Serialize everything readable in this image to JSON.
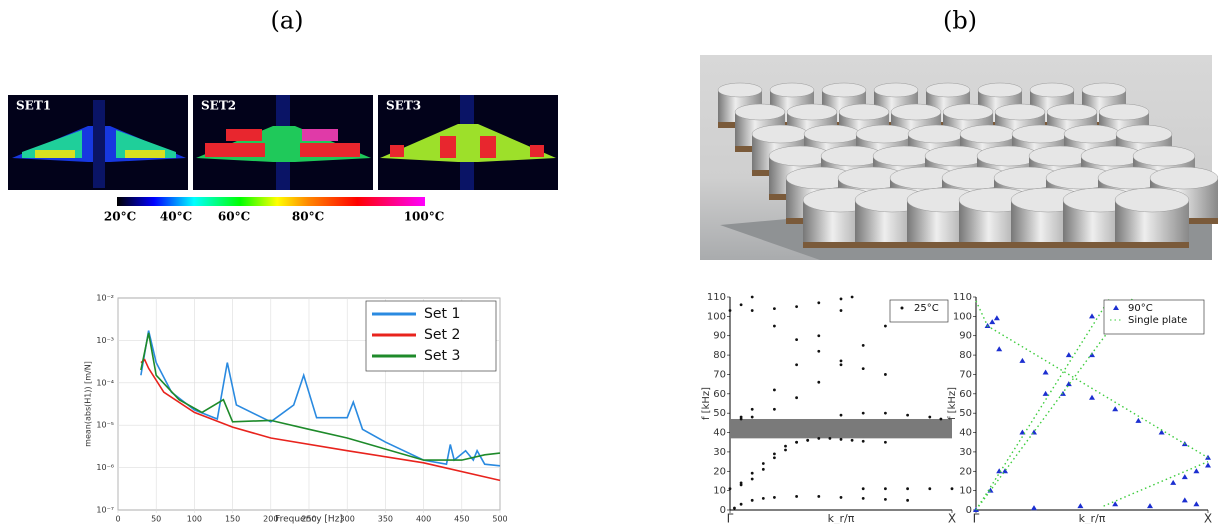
{
  "panels": {
    "a": {
      "label": "(a)",
      "images": [
        "SET1",
        "SET2",
        "SET3"
      ],
      "colorbar_labels": [
        "20°C",
        "40°C",
        "60°C",
        "80°C",
        "100°C"
      ]
    },
    "b": {
      "label": "(b)"
    }
  },
  "chart_data": [
    {
      "type": "line",
      "xlabel": "Frequency [Hz]",
      "ylabel": "mean(abs(H1)) [m/N]",
      "log_y": true,
      "grid": true,
      "legend": "upper right",
      "xlim": [
        0,
        500
      ],
      "xticks": [
        0,
        50,
        100,
        150,
        200,
        250,
        300,
        350,
        400,
        450,
        500
      ],
      "ylim": [
        1e-07,
        0.01
      ],
      "yticks": [
        {
          "value": 1e-07,
          "label": "10⁻⁷"
        },
        {
          "value": 1e-06,
          "label": "10⁻⁶"
        },
        {
          "value": 1e-05,
          "label": "10⁻⁵"
        },
        {
          "value": 0.0001,
          "label": "10⁻⁴"
        },
        {
          "value": 0.001,
          "label": "10⁻³"
        },
        {
          "value": 0.01,
          "label": "10⁻²"
        }
      ],
      "series": [
        {
          "name": "Set 1",
          "color": "#2a8ae0",
          "x": [
            30,
            40,
            50,
            70,
            100,
            130,
            143,
            155,
            200,
            230,
            243,
            260,
            300,
            308,
            320,
            350,
            400,
            430,
            435,
            440,
            455,
            465,
            470,
            480,
            500
          ],
          "values": [
            0.00015,
            0.0017,
            0.0003,
            6e-05,
            2.3e-05,
            1.4e-05,
            0.0003,
            3e-05,
            1.2e-05,
            3e-05,
            0.00015,
            1.5e-05,
            1.5e-05,
            3.5e-05,
            8e-06,
            4e-06,
            1.5e-06,
            1.2e-06,
            3.5e-06,
            1.5e-06,
            2.5e-06,
            1.5e-06,
            2.5e-06,
            1.2e-06,
            1.1e-06
          ]
        },
        {
          "name": "Set 2",
          "color": "#e8231d",
          "x": [
            30,
            35,
            40,
            60,
            100,
            150,
            200,
            300,
            400,
            500
          ],
          "values": [
            0.0003,
            0.00035,
            0.00022,
            6e-05,
            2e-05,
            9e-06,
            5e-06,
            2.5e-06,
            1.3e-06,
            5e-07
          ]
        },
        {
          "name": "Set 3",
          "color": "#1e8a2a",
          "x": [
            30,
            40,
            50,
            80,
            110,
            138,
            150,
            200,
            250,
            300,
            400,
            450,
            480,
            500
          ],
          "values": [
            0.0002,
            0.0015,
            0.00015,
            4e-05,
            2e-05,
            4e-05,
            1.2e-05,
            1.3e-05,
            8e-06,
            5e-06,
            1.5e-06,
            1.5e-06,
            2e-06,
            2.2e-06
          ]
        }
      ]
    },
    {
      "type": "scatter",
      "xlabel": "k_r/π",
      "ylabel": "f [kHz]",
      "legend": "upper right",
      "xlim": [
        0,
        1
      ],
      "xticks": [
        {
          "value": 0,
          "label": "Γ"
        },
        {
          "value": 1,
          "label": "X"
        }
      ],
      "ylim": [
        0,
        110
      ],
      "yticks": [
        0,
        10,
        20,
        30,
        40,
        50,
        60,
        70,
        80,
        90,
        100,
        110
      ],
      "shaded_band": [
        37,
        47
      ],
      "series": [
        {
          "name": "25°C",
          "color": "#111111",
          "marker": "dot",
          "x": [
            0.02,
            0.05,
            0.1,
            0.15,
            0.2,
            0.3,
            0.4,
            0.5,
            0.6,
            0.7,
            0.8,
            0,
            0.05,
            0.1,
            0.15,
            0.2,
            0.25,
            0.3,
            0.35,
            0.4,
            0.05,
            0.1,
            0.15,
            0.2,
            0.25,
            0.3,
            0.35,
            0.45,
            0.5,
            0.55,
            0.6,
            0.7,
            0.6,
            0.7,
            0.8,
            0.9,
            1,
            0.05,
            0.1,
            0.2,
            0.3,
            0.4,
            0.5,
            0.6,
            0.7,
            0.05,
            0.1,
            0.2,
            0.3,
            0.4,
            0.5,
            0.55,
            0.5,
            0.6,
            0.7,
            0.8,
            0.9,
            0.95,
            0,
            0.05,
            0.1,
            0.2,
            0.3,
            0.4,
            0.5,
            0.6,
            0.7,
            0.1,
            0.2,
            0.3,
            0.4,
            0.5
          ],
          "values": [
            1,
            3,
            5,
            6,
            6.5,
            7,
            7,
            6.5,
            6,
            5.5,
            5,
            11,
            14,
            19,
            24,
            29,
            33,
            35,
            36,
            37,
            13,
            16,
            21,
            27,
            31,
            35,
            36,
            37,
            36.5,
            36,
            35.5,
            35,
            11,
            11,
            11,
            11,
            11,
            47,
            48,
            52,
            58,
            66,
            75,
            85,
            95,
            48,
            52,
            62,
            75,
            90,
            103,
            110,
            49,
            50,
            50,
            49,
            48,
            47,
            103,
            106,
            110,
            95,
            88,
            82,
            77,
            73,
            70,
            103,
            104,
            105,
            107,
            109
          ]
        }
      ]
    },
    {
      "type": "scatter",
      "xlabel": "k_r/π",
      "ylabel": "f [kHz]",
      "legend": "upper right",
      "xlim": [
        0,
        1
      ],
      "xticks": [
        {
          "value": 0,
          "label": "Γ"
        },
        {
          "value": 1,
          "label": "X"
        }
      ],
      "ylim": [
        0,
        110
      ],
      "yticks": [
        0,
        10,
        20,
        30,
        40,
        50,
        60,
        70,
        80,
        90,
        100,
        110
      ],
      "series": [
        {
          "name": "90°C",
          "color": "#1c2fd0",
          "marker": "triangle",
          "x": [
            0,
            0.1,
            0.2,
            0.3,
            0.4,
            0.5,
            0.0625,
            0.125,
            0.25,
            0.375,
            0.5,
            0.625,
            0.1,
            0.2,
            0.3,
            0.4,
            0.5,
            0.6,
            0.7,
            0.8,
            0.9,
            1,
            0.85,
            0.9,
            0.95,
            1,
            0.25,
            0.45,
            0.6,
            0.75,
            0.9,
            0.95,
            0.05,
            0.07,
            0.09
          ],
          "values": [
            0,
            20,
            40,
            60,
            80,
            100,
            10,
            20,
            40,
            60,
            80,
            100,
            83,
            77,
            71,
            65,
            58,
            52,
            46,
            40,
            34,
            27,
            14,
            17,
            20,
            23,
            1,
            2,
            3,
            2,
            5,
            3,
            95,
            97,
            99
          ]
        },
        {
          "name": "Single plate",
          "color": "#3ccc3c",
          "marker": "dotted-line",
          "x": [
            0,
            0.58,
            null,
            0,
            0.68,
            null,
            0,
            0.05,
            1,
            null,
            0.55,
            1
          ],
          "values": [
            0,
            110,
            null,
            0,
            110,
            null,
            108,
            95,
            27,
            null,
            2,
            25
          ]
        }
      ]
    }
  ]
}
